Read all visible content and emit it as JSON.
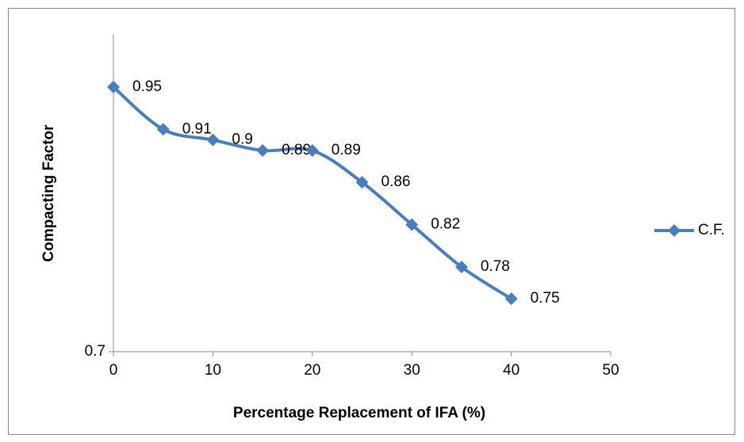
{
  "chart_data": {
    "type": "line",
    "smooth": true,
    "x_label": "Percentage Replacement of IFA (%)",
    "y_label": "Compacting Factor",
    "x": [
      0,
      5,
      10,
      15,
      20,
      25,
      30,
      35,
      40
    ],
    "series": [
      {
        "name": "C.F.",
        "color": "#4a7ebb",
        "values": [
          0.95,
          0.91,
          0.9,
          0.89,
          0.89,
          0.86,
          0.82,
          0.78,
          0.75
        ]
      }
    ],
    "xlim": [
      0,
      50
    ],
    "xticks": [
      0,
      10,
      20,
      30,
      40,
      50
    ],
    "ylim": [
      0.7,
      1.0
    ],
    "yticks": [
      0.7
    ],
    "legend": "right",
    "data_labels": true
  }
}
